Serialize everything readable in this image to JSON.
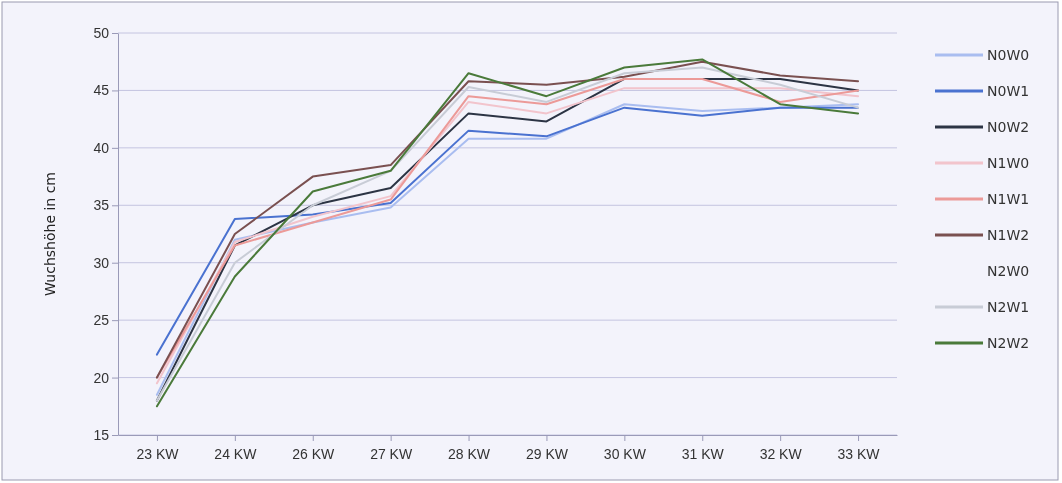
{
  "chart_data": {
    "type": "line",
    "ylabel": "Wuchshöhe in cm",
    "categories": [
      "23 KW",
      "24 KW",
      "26 KW",
      "27 KW",
      "28 KW",
      "29 KW",
      "30 KW",
      "31 KW",
      "32 KW",
      "33 KW"
    ],
    "ylim": [
      15,
      50
    ],
    "yticks": [
      15,
      20,
      25,
      30,
      35,
      40,
      45,
      50
    ],
    "grid": "y",
    "legend": "right",
    "marker": "none",
    "line_style": "solid",
    "series": [
      {
        "name": "N0W0",
        "color": "#a9bdf0",
        "values": [
          18.5,
          32,
          33.5,
          34.8,
          40.8,
          40.8,
          43.8,
          43.2,
          43.5,
          43.8
        ]
      },
      {
        "name": "N0W1",
        "color": "#4a72d0",
        "values": [
          22,
          33.8,
          34.2,
          35.2,
          41.5,
          41,
          43.5,
          42.8,
          43.5,
          43.5
        ]
      },
      {
        "name": "N0W2",
        "color": "#2c3444",
        "values": [
          18,
          31.5,
          35,
          36.5,
          43,
          42.3,
          46,
          46,
          46,
          45
        ]
      },
      {
        "name": "N1W0",
        "color": "#f2c4cc",
        "values": [
          19.5,
          31.8,
          34,
          35.8,
          44,
          43,
          45.2,
          45.2,
          45.2,
          44.5
        ]
      },
      {
        "name": "N1W1",
        "color": "#ec9a98",
        "values": [
          20,
          31.5,
          33.5,
          35.5,
          44.5,
          43.8,
          46,
          46,
          44,
          45
        ]
      },
      {
        "name": "N1W2",
        "color": "#7a5050",
        "values": [
          20,
          32.5,
          37.5,
          38.5,
          45.8,
          45.5,
          46.2,
          47.5,
          46.3,
          45.8
        ]
      },
      {
        "name": "N2W0",
        "values": [
          null,
          null,
          null,
          null,
          null,
          null,
          null,
          null,
          null,
          null
        ]
      },
      {
        "name": "N2W1",
        "color": "#c8ccd6",
        "values": [
          18,
          30,
          35,
          38,
          45.3,
          44,
          46.5,
          47,
          45.5,
          43.5
        ]
      },
      {
        "name": "N2W2",
        "color": "#4a7a3a",
        "values": [
          17.5,
          28.8,
          36.2,
          38,
          46.5,
          44.5,
          47,
          47.7,
          43.8,
          43
        ]
      }
    ]
  }
}
